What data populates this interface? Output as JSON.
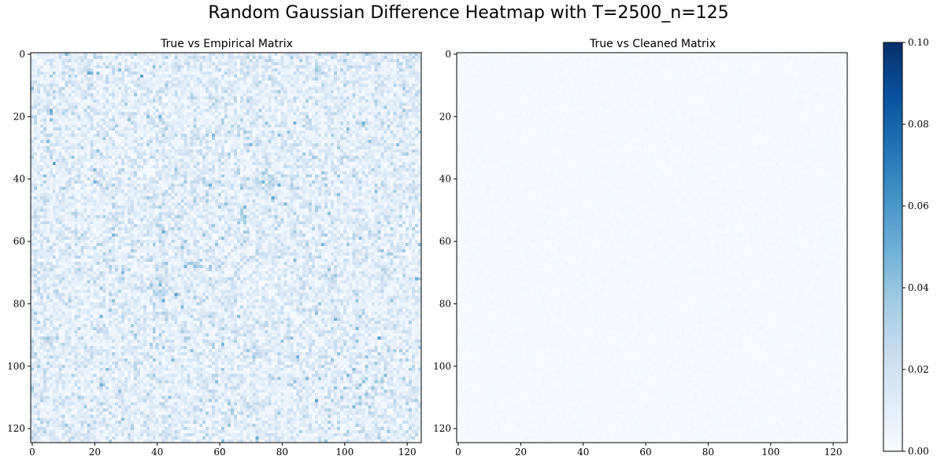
{
  "figure": {
    "suptitle": "Random Gaussian Difference Heatmap with T=2500_n=125"
  },
  "chart_data": [
    {
      "type": "heatmap",
      "title": "True vs Empirical Matrix",
      "rows": 125,
      "cols": 125,
      "value_range": [
        0.0,
        0.1
      ],
      "typical_value": 0.015,
      "max_value": 0.09,
      "cmap": "Blues",
      "xticks": [
        0,
        20,
        40,
        60,
        80,
        100,
        120
      ],
      "yticks": [
        0,
        20,
        40,
        60,
        80,
        100,
        120
      ]
    },
    {
      "type": "heatmap",
      "title": "True vs Cleaned Matrix",
      "rows": 125,
      "cols": 125,
      "value_range": [
        0.0,
        0.1
      ],
      "typical_value": 0.001,
      "max_value": 0.003,
      "cmap": "Blues",
      "xticks": [
        0,
        20,
        40,
        60,
        80,
        100,
        120
      ],
      "yticks": [
        0,
        20,
        40,
        60,
        80,
        100,
        120
      ]
    }
  ],
  "colorbar": {
    "min": 0.0,
    "max": 0.1,
    "ticks": [
      "0.00",
      "0.02",
      "0.04",
      "0.06",
      "0.08",
      "0.10"
    ],
    "colors": [
      "#f7fbff",
      "#deebf7",
      "#c6dbef",
      "#9ecae1",
      "#6baed6",
      "#4292c6",
      "#2171b5",
      "#08519c",
      "#08306b"
    ]
  }
}
